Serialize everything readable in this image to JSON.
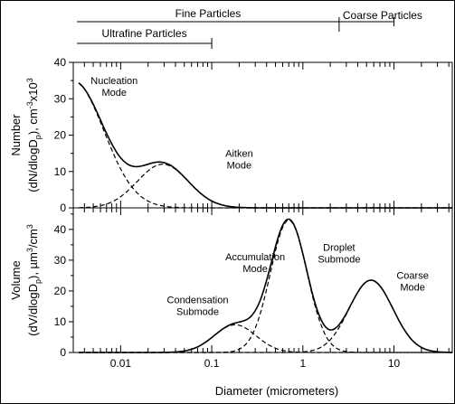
{
  "chart_data": {
    "type": "line",
    "xlabel": "Diameter (micrometers)",
    "x_scale": "log",
    "x_ticks": [
      {
        "value": 0.01,
        "label": "0.01"
      },
      {
        "value": 0.1,
        "label": "0.1"
      },
      {
        "value": 1,
        "label": "1"
      },
      {
        "value": 10,
        "label": "10"
      }
    ],
    "size_ranges": [
      {
        "label": "Fine Particles",
        "from": 0.003,
        "to": 2.5
      },
      {
        "label": "Coarse Particles",
        "from": 2.5,
        "to": 10
      },
      {
        "label": "Ultrafine Particles",
        "from": 0.003,
        "to": 0.1
      }
    ],
    "panels": [
      {
        "name": "number",
        "ylabel_line1": "Number",
        "ylabel_line2": "(dN/dlogD",
        "ylabel_sub": "p",
        "ylabel_line2_tail": "), cm",
        "ylabel_sup1": "-3",
        "ylabel_mid": "x10",
        "ylabel_sup2": "3",
        "ylim": [
          0,
          40
        ],
        "yticks": [
          0,
          10,
          20,
          30,
          40
        ],
        "modes": [
          {
            "name": "Nucleation",
            "amplitude": 34.9,
            "center": 0.003,
            "log_sigma": 0.34
          },
          {
            "name": "Aitken",
            "amplitude": 12.0,
            "center": 0.029,
            "log_sigma": 0.28
          }
        ],
        "annotations": [
          {
            "lines": [
              "Nucleation",
              "Mode"
            ],
            "x": 0.0085,
            "y": 34
          },
          {
            "lines": [
              "Aitken",
              "Mode"
            ],
            "x": 0.2,
            "y": 14
          }
        ]
      },
      {
        "name": "volume",
        "ylabel_line1": "Volume",
        "ylabel_line2": "(dV/dlogD",
        "ylabel_sub": "p",
        "ylabel_line2_tail": "), µm",
        "ylabel_sup1": "3",
        "ylabel_mid": "/cm",
        "ylabel_sup2": "3",
        "ylim": [
          0,
          47
        ],
        "yticks": [
          0,
          10,
          20,
          30,
          40
        ],
        "modes": [
          {
            "name": "Condensation",
            "amplitude": 9.0,
            "center": 0.18,
            "log_sigma": 0.23
          },
          {
            "name": "Droplet",
            "amplitude": 43.0,
            "center": 0.7,
            "log_sigma": 0.2
          },
          {
            "name": "Coarse",
            "amplitude": 23.5,
            "center": 5.6,
            "log_sigma": 0.24
          }
        ],
        "annotations": [
          {
            "lines": [
              "Accumulation",
              "Mode"
            ],
            "x": 0.3,
            "y": 30
          },
          {
            "lines": [
              "Droplet",
              "Submode"
            ],
            "x": 2.5,
            "y": 33
          },
          {
            "lines": [
              "Coarse",
              "Mode"
            ],
            "x": 16,
            "y": 24
          },
          {
            "lines": [
              "Condensation",
              "Submode"
            ],
            "x": 0.07,
            "y": 16
          }
        ]
      }
    ]
  }
}
